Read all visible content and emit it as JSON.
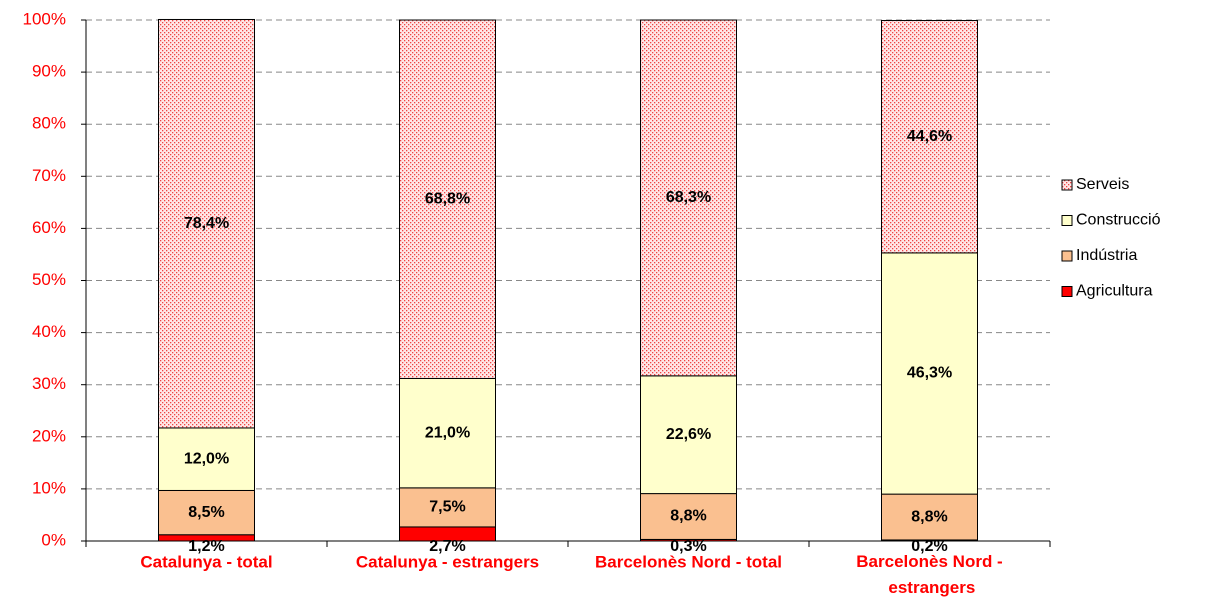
{
  "chart_data": {
    "type": "stacked_bar_100",
    "categories": [
      "Catalunya - total",
      "Catalunya - estrangers",
      "Barcelonès Nord - total",
      "Barcelonès Nord - estrangers"
    ],
    "series": [
      {
        "name": "Agricultura",
        "color": "#ff0000",
        "values": [
          1.2,
          2.7,
          0.3,
          0.2
        ],
        "value_labels": [
          "1,2%",
          "2,7%",
          "0,3%",
          "0,2%"
        ]
      },
      {
        "name": "Indústria",
        "color": "#fac090",
        "values": [
          8.5,
          7.5,
          8.8,
          8.8
        ],
        "value_labels": [
          "8,5%",
          "7,5%",
          "8,8%",
          "8,8%"
        ]
      },
      {
        "name": "Construcció",
        "color": "#ffffcc",
        "values": [
          12.0,
          21.0,
          22.6,
          46.3
        ],
        "value_labels": [
          "12,0%",
          "21,0%",
          "22,6%",
          "46,3%"
        ]
      },
      {
        "name": "Serveis",
        "color": "#ff0000",
        "pattern": "dots",
        "values": [
          78.4,
          68.8,
          68.3,
          44.6
        ],
        "value_labels": [
          "78,4%",
          "68,8%",
          "68,3%",
          "44,6%"
        ]
      }
    ],
    "ylim": [
      0,
      100
    ],
    "yticks": [
      {
        "value": 0,
        "label": "0%"
      },
      {
        "value": 10,
        "label": "10%"
      },
      {
        "value": 20,
        "label": "20%"
      },
      {
        "value": 30,
        "label": "30%"
      },
      {
        "value": 40,
        "label": "40%"
      },
      {
        "value": 50,
        "label": "50%"
      },
      {
        "value": 60,
        "label": "60%"
      },
      {
        "value": 70,
        "label": "70%"
      },
      {
        "value": 80,
        "label": "80%"
      },
      {
        "value": 90,
        "label": "90%"
      },
      {
        "value": 100,
        "label": "100%"
      }
    ],
    "grid": true,
    "legend": "right"
  }
}
